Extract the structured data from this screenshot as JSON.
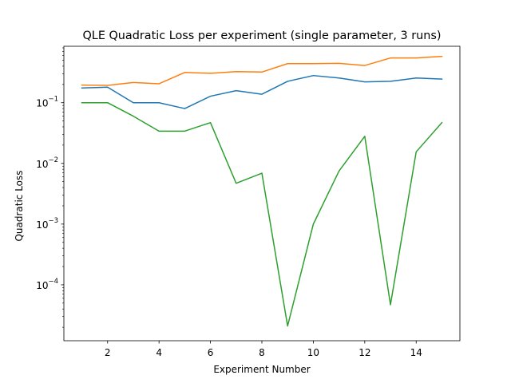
{
  "chart_data": {
    "type": "line",
    "title": "QLE Quadratic Loss per experiment (single parameter, 3 runs)",
    "xlabel": "Experiment Number",
    "ylabel": "Quadratic Loss",
    "yscale": "log",
    "xlim": [
      0.3,
      15.7
    ],
    "ylim": [
      1.2e-05,
      0.85
    ],
    "grid": false,
    "x": [
      1,
      2,
      3,
      4,
      5,
      6,
      7,
      8,
      9,
      10,
      11,
      12,
      13,
      14,
      15
    ],
    "x_ticks": [
      2,
      4,
      6,
      8,
      10,
      12,
      14
    ],
    "x_tick_labels": [
      "2",
      "4",
      "6",
      "8",
      "10",
      "12",
      "14"
    ],
    "y_ticks": [
      0.0001,
      0.001,
      0.01,
      0.1
    ],
    "y_tick_labels": [
      {
        "base": "10",
        "exp": "−4"
      },
      {
        "base": "10",
        "exp": "−3"
      },
      {
        "base": "10",
        "exp": "−2"
      },
      {
        "base": "10",
        "exp": "−1"
      }
    ],
    "series": [
      {
        "color": "#1f77b4",
        "values": [
          0.175,
          0.18,
          0.1,
          0.1,
          0.08,
          0.128,
          0.158,
          0.138,
          0.225,
          0.28,
          0.255,
          0.22,
          0.225,
          0.255,
          0.245
        ]
      },
      {
        "color": "#ff7f0e",
        "values": [
          0.195,
          0.193,
          0.215,
          0.205,
          0.315,
          0.305,
          0.325,
          0.32,
          0.44,
          0.44,
          0.445,
          0.41,
          0.545,
          0.545,
          0.58
        ]
      },
      {
        "color": "#2ca02c",
        "values": [
          0.1,
          0.1,
          0.06,
          0.034,
          0.034,
          0.047,
          0.0047,
          0.0069,
          2.1e-05,
          0.001,
          0.0075,
          0.028,
          4.7e-05,
          0.0155,
          0.047
        ]
      }
    ]
  }
}
